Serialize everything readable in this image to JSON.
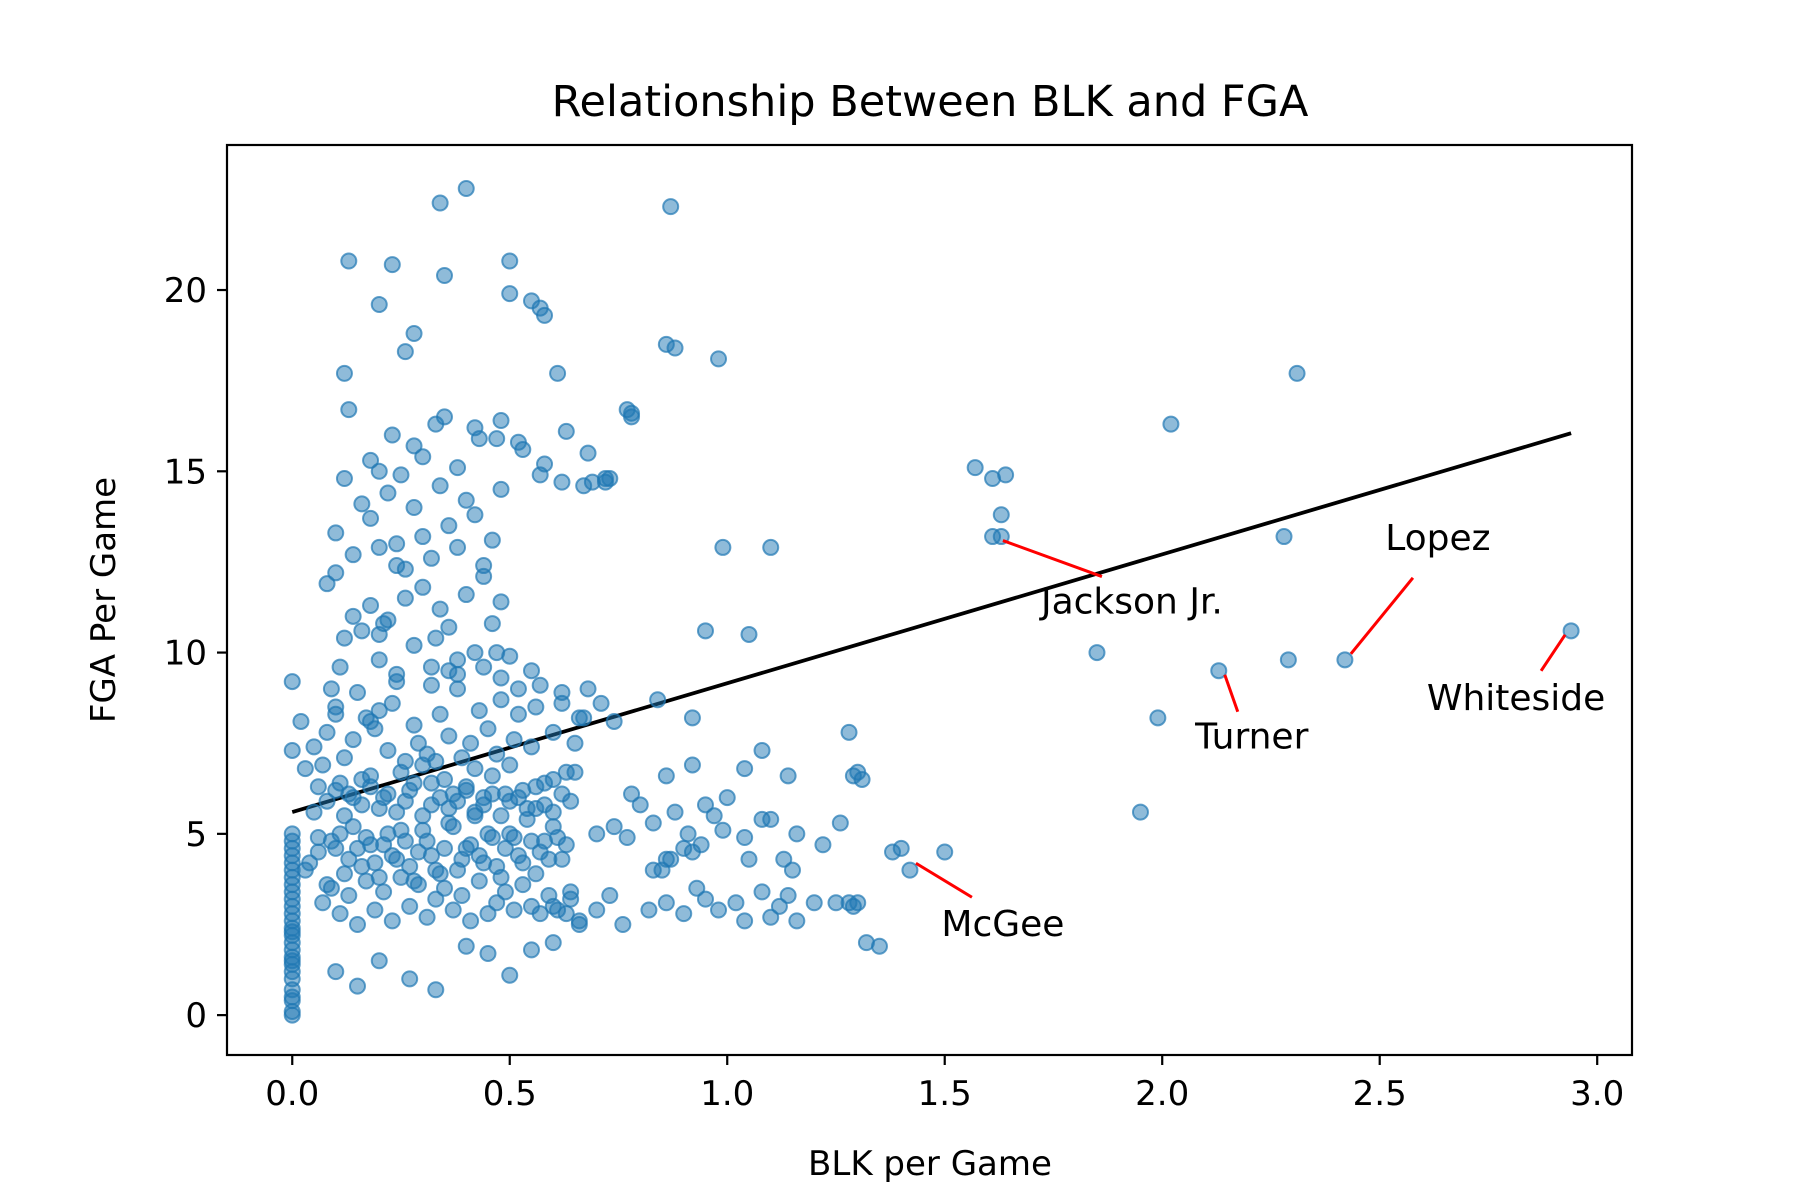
{
  "chart_data": {
    "type": "scatter",
    "title": "Relationship Between BLK and FGA",
    "xlabel": "BLK per Game",
    "ylabel": "FGA Per Game",
    "xlim": [
      -0.15,
      3.08
    ],
    "ylim": [
      -1.1,
      24.0
    ],
    "grid": false,
    "xticks": [
      0.0,
      0.5,
      1.0,
      1.5,
      2.0,
      2.5,
      3.0
    ],
    "xtick_labels": [
      "0.0",
      "0.5",
      "1.0",
      "1.5",
      "2.0",
      "2.5",
      "3.0"
    ],
    "yticks": [
      0,
      5,
      10,
      15,
      20
    ],
    "ytick_labels": [
      "0",
      "5",
      "10",
      "15",
      "20"
    ],
    "point_color": "#1f77b4",
    "trend_color": "#000000",
    "annotation_color": "#ff0000",
    "trend_line": {
      "x": [
        0.0,
        2.94
      ],
      "y": [
        5.6,
        16.05
      ]
    },
    "points": {
      "x": [
        0.0,
        0.0,
        0.0,
        0.0,
        0.0,
        0.0,
        0.0,
        0.0,
        0.0,
        0.0,
        0.0,
        0.0,
        0.0,
        0.0,
        0.0,
        0.0,
        0.0,
        0.0,
        0.0,
        0.0,
        0.0,
        0.0,
        0.0,
        0.0,
        0.0,
        0.0,
        0.0,
        0.0,
        0.0,
        0.0,
        0.02,
        0.03,
        0.05,
        0.06,
        0.07,
        0.08,
        0.09,
        0.1,
        0.11,
        0.12,
        0.13,
        0.14,
        0.15,
        0.16,
        0.17,
        0.18,
        0.19,
        0.2,
        0.21,
        0.22,
        0.23,
        0.24,
        0.25,
        0.26,
        0.27,
        0.28,
        0.29,
        0.3,
        0.31,
        0.32,
        0.33,
        0.34,
        0.35,
        0.36,
        0.37,
        0.38,
        0.39,
        0.4,
        0.41,
        0.42,
        0.43,
        0.44,
        0.45,
        0.46,
        0.47,
        0.48,
        0.49,
        0.5,
        0.51,
        0.52,
        0.53,
        0.55,
        0.56,
        0.57,
        0.58,
        0.6,
        0.62,
        0.63,
        0.65,
        0.67,
        0.04,
        0.06,
        0.08,
        0.1,
        0.12,
        0.14,
        0.16,
        0.18,
        0.2,
        0.22,
        0.24,
        0.26,
        0.28,
        0.3,
        0.32,
        0.34,
        0.36,
        0.38,
        0.4,
        0.42,
        0.44,
        0.46,
        0.48,
        0.5,
        0.52,
        0.54,
        0.56,
        0.58,
        0.6,
        0.62,
        0.07,
        0.09,
        0.11,
        0.13,
        0.15,
        0.17,
        0.19,
        0.21,
        0.23,
        0.25,
        0.27,
        0.29,
        0.31,
        0.33,
        0.35,
        0.37,
        0.39,
        0.41,
        0.43,
        0.45,
        0.47,
        0.49,
        0.51,
        0.53,
        0.55,
        0.57,
        0.59,
        0.61,
        0.64,
        0.66,
        0.05,
        0.08,
        0.1,
        0.12,
        0.14,
        0.16,
        0.18,
        0.2,
        0.22,
        0.24,
        0.26,
        0.28,
        0.3,
        0.32,
        0.34,
        0.36,
        0.38,
        0.4,
        0.42,
        0.44,
        0.46,
        0.48,
        0.5,
        0.52,
        0.54,
        0.56,
        0.58,
        0.6,
        0.62,
        0.64,
        0.03,
        0.06,
        0.09,
        0.11,
        0.13,
        0.15,
        0.17,
        0.19,
        0.21,
        0.23,
        0.25,
        0.27,
        0.29,
        0.31,
        0.33,
        0.35,
        0.37,
        0.39,
        0.41,
        0.43,
        0.45,
        0.47,
        0.49,
        0.51,
        0.53,
        0.55,
        0.57,
        0.59,
        0.61,
        0.63,
        0.08,
        0.1,
        0.12,
        0.14,
        0.16,
        0.18,
        0.2,
        0.22,
        0.24,
        0.26,
        0.28,
        0.3,
        0.32,
        0.34,
        0.36,
        0.38,
        0.4,
        0.42,
        0.44,
        0.46,
        0.48,
        0.5,
        0.1,
        0.12,
        0.14,
        0.16,
        0.18,
        0.2,
        0.22,
        0.24,
        0.26,
        0.28,
        0.3,
        0.32,
        0.34,
        0.36,
        0.38,
        0.4,
        0.42,
        0.44,
        0.46,
        0.48,
        0.13,
        0.18,
        0.23,
        0.28,
        0.33,
        0.38,
        0.43,
        0.48,
        0.53,
        0.58,
        0.63,
        0.68,
        0.73,
        0.78,
        0.12,
        0.2,
        0.25,
        0.3,
        0.35,
        0.42,
        0.47,
        0.52,
        0.57,
        0.62,
        0.67,
        0.72,
        0.1,
        0.15,
        0.2,
        0.27,
        0.33,
        0.4,
        0.45,
        0.5,
        0.55,
        0.6,
        0.13,
        0.23,
        0.34,
        0.4,
        0.5,
        0.35,
        0.87,
        0.5,
        0.57,
        0.55,
        0.58,
        0.2,
        0.28,
        0.26,
        0.61,
        0.86,
        0.88,
        0.98,
        0.77,
        0.78,
        0.69,
        0.72,
        0.1,
        0.11,
        0.2,
        0.21,
        0.24,
        0.18,
        0.36,
        0.38,
        0.33,
        0.32,
        0.44,
        0.47,
        0.48,
        0.52,
        0.55,
        0.62,
        0.66,
        0.68,
        0.71,
        0.74,
        0.84,
        0.92,
        0.6,
        0.63,
        0.64,
        0.66,
        0.7,
        0.73,
        0.76,
        0.82,
        0.86,
        0.9,
        0.93,
        0.95,
        0.98,
        1.02,
        1.04,
        1.08,
        1.1,
        1.12,
        1.14,
        1.16,
        0.56,
        0.6,
        0.65,
        0.7,
        0.74,
        0.77,
        0.8,
        0.83,
        0.86,
        0.88,
        0.91,
        0.94,
        0.97,
        0.99,
        1.04,
        1.08,
        1.13,
        1.16,
        1.22,
        1.26,
        0.86,
        0.92,
        0.95,
        1.0,
        1.04,
        1.08,
        1.1,
        1.14,
        1.29,
        1.3,
        1.28,
        1.31,
        1.05,
        1.15,
        0.87,
        0.83,
        0.92,
        0.9,
        0.85,
        0.78,
        1.2,
        1.28,
        1.29,
        1.32,
        1.38,
        1.4,
        1.42,
        1.5,
        1.25,
        1.3,
        1.35,
        1.1,
        1.05,
        0.99,
        0.95,
        1.57,
        1.61,
        1.63,
        1.64,
        1.63,
        1.61,
        1.85,
        1.95,
        1.99,
        2.02,
        2.13,
        2.28,
        2.29,
        2.31,
        2.42,
        2.94
      ],
      "y": [
        0.0,
        0.1,
        0.4,
        0.7,
        1.0,
        1.2,
        1.4,
        1.6,
        1.8,
        2.0,
        2.2,
        2.4,
        2.6,
        2.8,
        3.0,
        3.2,
        3.4,
        3.6,
        3.8,
        4.0,
        4.2,
        4.4,
        4.6,
        4.8,
        5.0,
        2.3,
        1.5,
        0.5,
        9.2,
        7.3,
        8.1,
        6.8,
        7.4,
        6.3,
        6.9,
        7.8,
        9.0,
        8.5,
        6.4,
        7.1,
        6.1,
        7.6,
        8.9,
        6.5,
        8.2,
        6.6,
        7.9,
        8.4,
        6.0,
        7.3,
        8.6,
        9.4,
        6.7,
        7.0,
        6.2,
        8.0,
        7.5,
        6.9,
        7.2,
        6.4,
        7.0,
        8.3,
        6.5,
        7.7,
        6.1,
        9.0,
        7.1,
        6.3,
        7.5,
        6.8,
        8.4,
        6.0,
        7.9,
        6.6,
        7.2,
        8.7,
        6.1,
        6.9,
        7.6,
        8.3,
        6.2,
        7.4,
        8.5,
        9.1,
        6.4,
        7.8,
        8.9,
        6.7,
        7.5,
        8.2,
        4.2,
        4.9,
        3.6,
        4.6,
        3.9,
        5.2,
        4.1,
        4.7,
        3.8,
        5.0,
        4.3,
        4.8,
        3.7,
        5.1,
        4.4,
        3.9,
        5.3,
        4.0,
        4.6,
        5.5,
        4.2,
        4.9,
        3.8,
        5.0,
        4.4,
        5.4,
        3.9,
        4.8,
        5.2,
        4.3,
        3.1,
        3.5,
        2.8,
        3.3,
        2.5,
        3.7,
        2.9,
        3.4,
        2.6,
        3.8,
        3.0,
        3.6,
        2.7,
        3.2,
        3.5,
        2.9,
        3.3,
        2.6,
        3.7,
        2.8,
        3.1,
        3.4,
        2.9,
        3.6,
        3.0,
        2.8,
        3.3,
        2.9,
        3.2,
        2.5,
        5.6,
        5.9,
        6.2,
        5.5,
        6.0,
        5.8,
        6.3,
        5.7,
        6.1,
        5.6,
        5.9,
        6.4,
        5.5,
        5.8,
        6.0,
        5.7,
        5.9,
        6.2,
        5.6,
        5.8,
        6.1,
        5.5,
        5.9,
        6.0,
        5.7,
        6.3,
        5.8,
        5.6,
        6.1,
        5.9,
        4.0,
        4.5,
        4.8,
        5.0,
        4.3,
        4.6,
        4.9,
        4.2,
        4.7,
        4.4,
        5.1,
        4.1,
        4.5,
        4.8,
        4.0,
        4.6,
        5.2,
        4.3,
        4.7,
        4.4,
        5.0,
        4.1,
        4.6,
        4.9,
        4.2,
        4.8,
        4.5,
        4.3,
        4.9,
        4.7,
        11.9,
        12.2,
        10.4,
        11.0,
        10.6,
        11.3,
        9.8,
        10.9,
        12.4,
        11.5,
        10.2,
        11.8,
        9.6,
        11.2,
        10.7,
        9.4,
        11.6,
        10.0,
        12.1,
        10.8,
        11.4,
        9.9,
        13.3,
        14.8,
        12.7,
        14.1,
        13.7,
        12.9,
        14.4,
        13.0,
        12.3,
        14.0,
        13.2,
        12.6,
        14.6,
        13.5,
        12.9,
        14.2,
        13.8,
        12.4,
        13.1,
        14.5,
        16.7,
        15.3,
        16.0,
        15.7,
        16.3,
        15.1,
        15.9,
        16.4,
        15.6,
        15.2,
        16.1,
        15.5,
        14.8,
        16.6,
        17.7,
        15.0,
        14.9,
        15.4,
        16.5,
        16.2,
        15.9,
        15.8,
        14.9,
        14.7,
        14.6,
        14.7,
        1.2,
        0.8,
        1.5,
        1.0,
        0.7,
        1.9,
        1.7,
        1.1,
        1.8,
        2.0,
        20.8,
        20.7,
        22.4,
        22.8,
        20.8,
        20.4,
        22.3,
        19.9,
        19.5,
        19.7,
        19.3,
        19.6,
        18.8,
        18.3,
        17.7,
        18.5,
        18.4,
        18.1,
        16.7,
        16.5,
        14.7,
        14.8,
        8.3,
        9.6,
        10.5,
        10.8,
        9.2,
        8.1,
        9.5,
        9.8,
        10.4,
        9.1,
        9.6,
        10.0,
        9.3,
        9.0,
        9.5,
        8.6,
        8.2,
        9.0,
        8.6,
        8.1,
        8.7,
        8.2,
        3.0,
        2.8,
        3.4,
        2.6,
        2.9,
        3.3,
        2.5,
        2.9,
        3.1,
        2.8,
        3.5,
        3.2,
        2.9,
        3.1,
        2.6,
        3.4,
        2.7,
        3.0,
        3.3,
        2.6,
        5.7,
        6.5,
        6.7,
        5.0,
        5.2,
        4.9,
        5.8,
        5.3,
        4.3,
        5.6,
        5.0,
        4.7,
        5.5,
        5.1,
        4.9,
        5.4,
        4.3,
        5.0,
        4.7,
        5.3,
        6.6,
        6.9,
        5.8,
        6.0,
        6.8,
        7.3,
        5.4,
        6.6,
        6.6,
        6.7,
        7.8,
        6.5,
        4.3,
        4.0,
        4.3,
        4.0,
        4.5,
        4.6,
        4.0,
        6.1,
        3.1,
        3.1,
        3.0,
        2.0,
        4.5,
        4.6,
        4.0,
        4.5,
        3.1,
        3.1,
        1.9,
        12.9,
        10.5,
        12.9,
        10.6,
        15.1,
        14.8,
        13.8,
        14.9,
        13.2,
        13.2,
        10.0,
        5.6,
        8.2,
        16.3,
        9.5,
        13.2,
        9.8,
        17.7,
        9.8,
        10.6
      ]
    },
    "annotations": [
      {
        "label": "Jackson Jr.",
        "point": [
          1.62,
          13.2
        ]
      },
      {
        "label": "Lopez",
        "point": [
          2.42,
          9.8
        ]
      },
      {
        "label": "Turner",
        "point": [
          2.13,
          9.5
        ]
      },
      {
        "label": "Whiteside",
        "point": [
          2.94,
          10.6
        ]
      },
      {
        "label": "McGee",
        "point": [
          1.42,
          4.3
        ]
      }
    ]
  }
}
